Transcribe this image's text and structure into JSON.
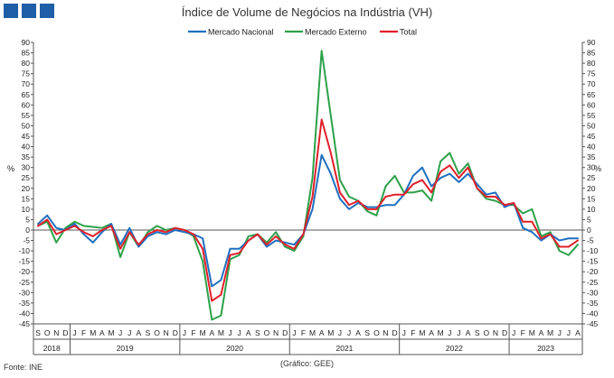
{
  "header": {
    "title": "Índice de Volume de Negócios na Indústria (VH)",
    "brand_color": "#1f5fa8"
  },
  "footer": {
    "source": "Fonte: INE",
    "credit": "(Gráfico: GEE)"
  },
  "chart_data": {
    "type": "line",
    "title": "Índice de Volume de Negócios na Indústria (VH)",
    "ylabel": "%",
    "ylabel_right": "%",
    "ylim": [
      -45,
      90
    ],
    "ytick_step": 5,
    "grid": false,
    "legend_position": "top",
    "month_labels": [
      "S",
      "O",
      "N",
      "D",
      "J",
      "F",
      "M",
      "A",
      "M",
      "J",
      "J",
      "A",
      "S",
      "O",
      "N",
      "D",
      "J",
      "F",
      "M",
      "A",
      "M",
      "J",
      "J",
      "A",
      "S",
      "O",
      "N",
      "D",
      "J",
      "F",
      "M",
      "A",
      "M",
      "J",
      "J",
      "A",
      "S",
      "O",
      "N",
      "D",
      "J",
      "F",
      "M",
      "A",
      "M",
      "J",
      "J",
      "A",
      "S",
      "O",
      "N",
      "D",
      "J",
      "F",
      "M",
      "A",
      "M",
      "J",
      "J",
      "A"
    ],
    "year_groups": [
      {
        "label": "2018",
        "count": 4
      },
      {
        "label": "2019",
        "count": 12
      },
      {
        "label": "2020",
        "count": 12
      },
      {
        "label": "2021",
        "count": 12
      },
      {
        "label": "2022",
        "count": 12
      },
      {
        "label": "2023",
        "count": 8
      }
    ],
    "series": [
      {
        "name": "Mercado Nacional",
        "color": "#1f6fbf",
        "values": [
          3,
          7,
          1,
          0,
          3,
          -2,
          -6,
          -1,
          3,
          -7,
          1,
          -8,
          -3,
          -1,
          -2,
          0,
          -1,
          -2,
          -4,
          -27,
          -24,
          -9,
          -9,
          -5,
          -2,
          -8,
          -5,
          -6,
          -7,
          -2,
          10,
          36,
          27,
          15,
          10,
          13,
          11,
          11,
          12,
          12,
          17,
          26,
          30,
          21,
          25,
          27,
          23,
          27,
          22,
          17,
          18,
          11,
          13,
          1,
          -1,
          -5,
          -2,
          -5,
          -4,
          -4
        ]
      },
      {
        "name": "Mercado Externo",
        "color": "#2ca14a",
        "values": [
          2,
          4,
          -6,
          1,
          4,
          2,
          1.5,
          1,
          3,
          -13,
          -1,
          -8,
          -1,
          2,
          0,
          1,
          0,
          -3,
          -15,
          -43,
          -41,
          -14,
          -12,
          -3,
          -2,
          -6,
          -1,
          -8,
          -10,
          -3,
          25,
          86,
          55,
          24,
          16,
          14,
          9,
          7,
          21,
          26,
          18,
          18,
          19,
          14,
          33,
          37,
          27,
          32,
          20,
          15,
          14,
          12,
          12,
          8,
          10,
          -3,
          -1,
          -10,
          -12,
          -7
        ]
      },
      {
        "name": "Total",
        "color": "#e0202a",
        "values": [
          2,
          5,
          -2,
          0,
          2,
          -1,
          -3,
          0,
          2,
          -9,
          -1,
          -7,
          -2,
          0,
          -1,
          1,
          0,
          -2,
          -9,
          -34,
          -31,
          -12,
          -11,
          -5,
          -2,
          -7,
          -3,
          -7,
          -9,
          -2,
          16,
          53,
          37,
          18,
          12,
          14,
          10,
          10,
          16,
          17,
          17,
          22,
          24,
          18,
          28,
          31,
          25,
          30,
          20,
          16,
          16,
          12,
          13,
          4,
          4,
          -4,
          -2,
          -8,
          -8,
          -5
        ]
      }
    ]
  }
}
